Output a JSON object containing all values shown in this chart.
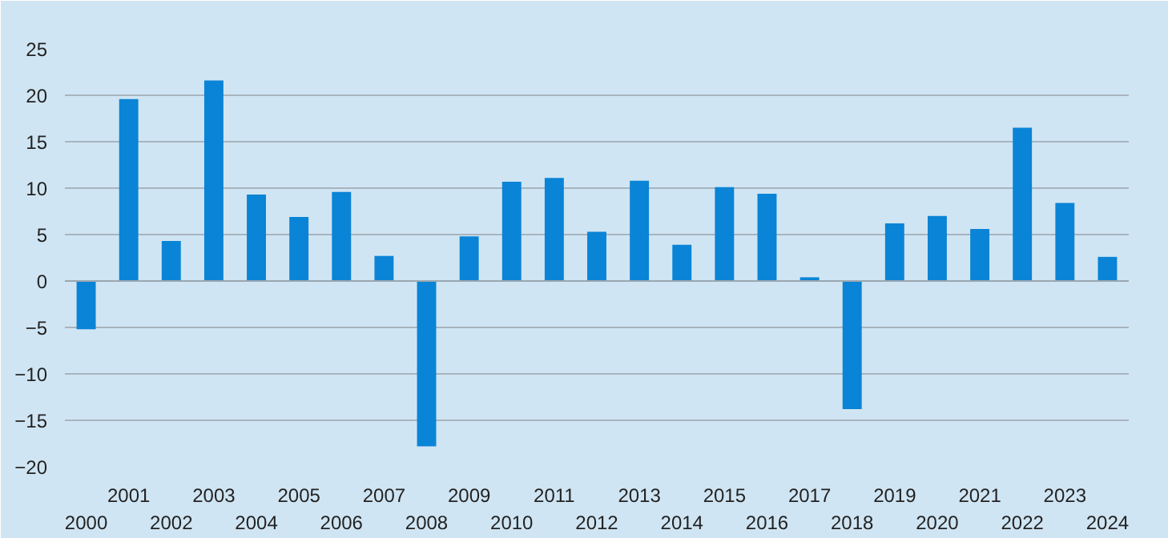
{
  "chart_data": {
    "type": "bar",
    "categories": [
      "2000",
      "2001",
      "2002",
      "2003",
      "2004",
      "2005",
      "2006",
      "2007",
      "2008",
      "2009",
      "2010",
      "2011",
      "2012",
      "2013",
      "2014",
      "2015",
      "2016",
      "2017",
      "2018",
      "2019",
      "2020",
      "2021",
      "2022",
      "2023",
      "2024"
    ],
    "values": [
      -5.2,
      19.6,
      4.3,
      21.6,
      9.3,
      6.9,
      9.6,
      2.7,
      -17.8,
      4.8,
      10.7,
      11.1,
      5.3,
      10.8,
      3.9,
      10.1,
      9.4,
      0.4,
      -13.8,
      6.2,
      7.0,
      5.6,
      16.5,
      8.4,
      2.6
    ],
    "color": "#0a84d6",
    "ylim": [
      -20,
      25
    ],
    "yticks": [
      -20,
      -15,
      -10,
      -5,
      0,
      5,
      10,
      15,
      20,
      25
    ],
    "grid": "y"
  }
}
